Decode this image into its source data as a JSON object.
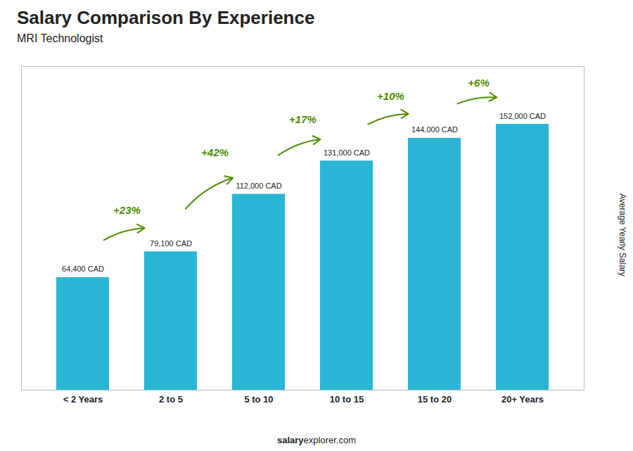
{
  "chart_data": {
    "type": "bar",
    "title": "Salary Comparison By Experience",
    "subtitle": "MRI Technologist",
    "ylabel": "Average Yearly Salary",
    "categories": [
      "< 2 Years",
      "2 to 5",
      "5 to 10",
      "10 to 15",
      "15 to 20",
      "20+ Years"
    ],
    "values": [
      64400,
      79100,
      112000,
      131000,
      144000,
      152000
    ],
    "value_labels": [
      "64,400 CAD",
      "79,100 CAD",
      "112,000 CAD",
      "131,000 CAD",
      "144,000 CAD",
      "152,000 CAD"
    ],
    "data_labels": true,
    "annotations": [
      "+23%",
      "+42%",
      "+17%",
      "+10%",
      "+6%"
    ],
    "footer": [
      "salary",
      "explorer.com"
    ],
    "color": "#29b6d4",
    "ylim": [
      0,
      185000
    ],
    "tick_labels": "x",
    "grid": false
  }
}
